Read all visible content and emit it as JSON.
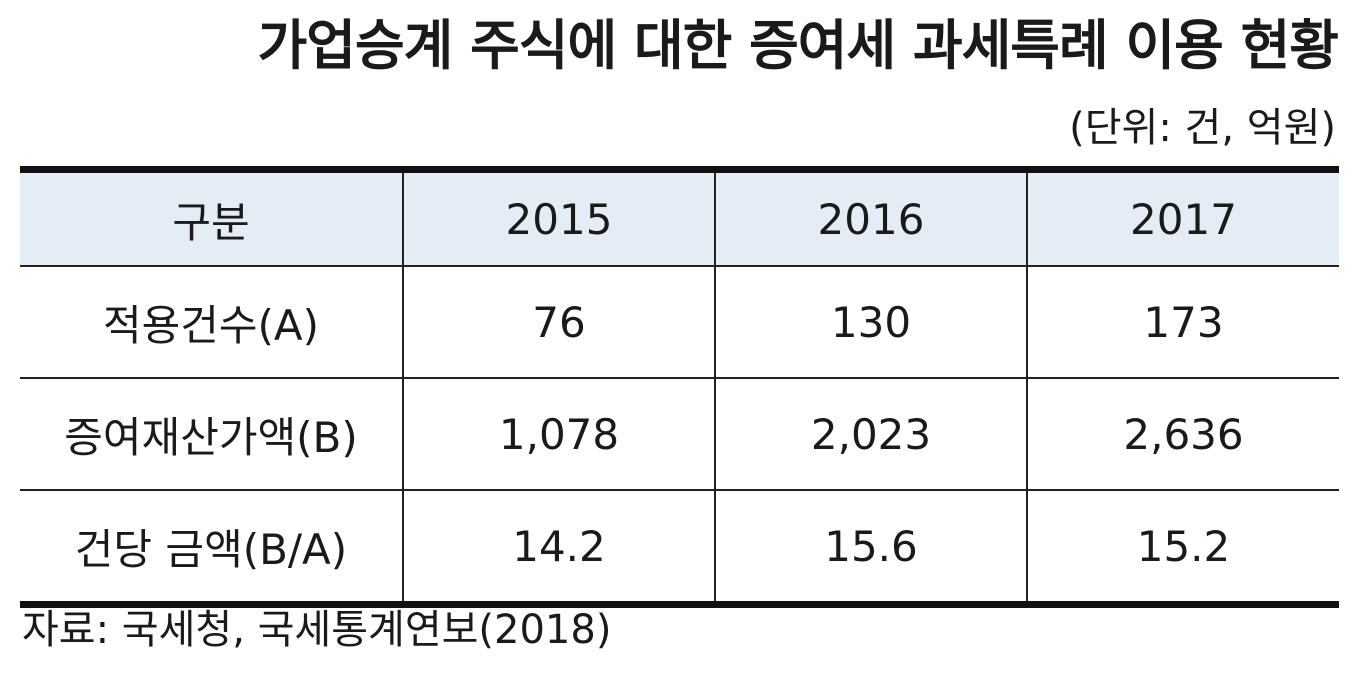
{
  "title": "가업승계 주식에 대한 증여세 과세특례 이용 현황",
  "unit": "(단위: 건, 억원)",
  "table": {
    "headers": [
      "구분",
      "2015",
      "2016",
      "2017"
    ],
    "rows": [
      {
        "label": "적용건수(A)",
        "values": [
          "76",
          "130",
          "173"
        ]
      },
      {
        "label": "증여재산가액(B)",
        "values": [
          "1,078",
          "2,023",
          "2,636"
        ]
      },
      {
        "label": "건당 금액(B/A)",
        "values": [
          "14.2",
          "15.6",
          "15.2"
        ]
      }
    ]
  },
  "source": "자료: 국세청, 국세통계연보(2018)"
}
